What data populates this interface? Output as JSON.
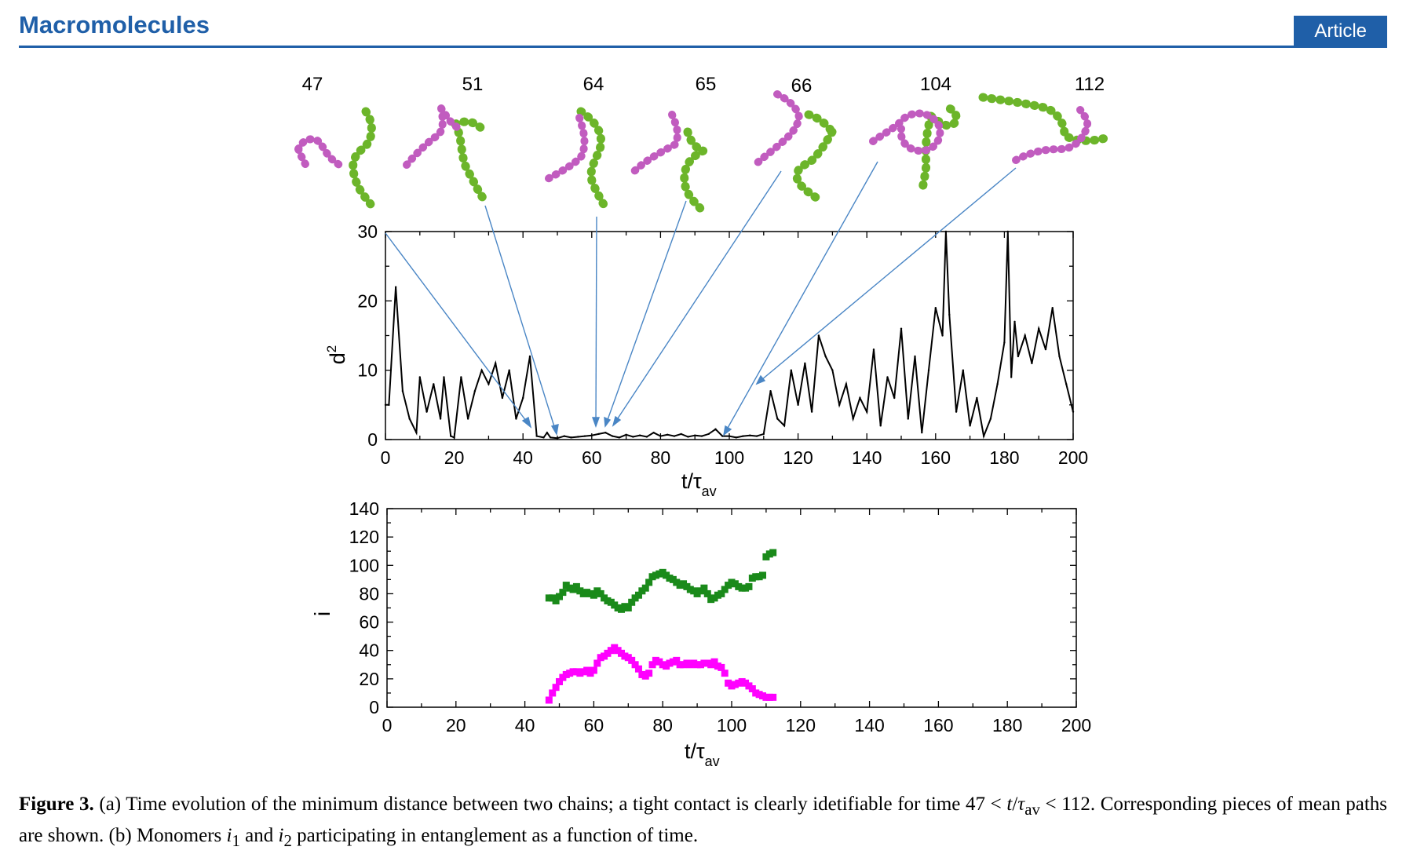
{
  "header": {
    "journal": "Macromolecules",
    "badge": "Article"
  },
  "snapshots": {
    "labels": [
      "47",
      "51",
      "64",
      "65",
      "66",
      "104",
      "112"
    ],
    "chain_colors": {
      "chain1": "#6cb52a",
      "chain2": "#c15cbf"
    }
  },
  "colors": {
    "accent": "#1f5fa8",
    "arrow": "#4a86c5",
    "green_series": "#1a8a1a",
    "magenta_series": "#ff00ff"
  },
  "chart_data": [
    {
      "type": "line",
      "panel": "a",
      "ylabel": "d",
      "ylabel_sup": "2",
      "xlabel": "t/τ",
      "xlabel_sub": "av",
      "xlim": [
        0,
        200
      ],
      "ylim": [
        0,
        30
      ],
      "xticks": [
        "0",
        "20",
        "40",
        "60",
        "80",
        "100",
        "120",
        "140",
        "160",
        "180",
        "200"
      ],
      "yticks": [
        "0",
        "10",
        "20",
        "30"
      ],
      "series": [
        {
          "name": "d2",
          "x": [
            0,
            1,
            3,
            5,
            7,
            9,
            10,
            12,
            14,
            16,
            17,
            19,
            20,
            22,
            24,
            26,
            28,
            30,
            32,
            34,
            36,
            38,
            40,
            42,
            44,
            46,
            47,
            48,
            50,
            52,
            54,
            56,
            58,
            60,
            62,
            64,
            66,
            68,
            70,
            72,
            74,
            76,
            78,
            80,
            82,
            84,
            86,
            88,
            90,
            92,
            94,
            96,
            98,
            100,
            102,
            104,
            106,
            108,
            110,
            112,
            114,
            116,
            118,
            120,
            122,
            124,
            126,
            128,
            130,
            132,
            134,
            136,
            138,
            140,
            142,
            144,
            146,
            148,
            150,
            152,
            154,
            156,
            158,
            160,
            162,
            163,
            164,
            166,
            168,
            170,
            172,
            174,
            176,
            178,
            180,
            181,
            182,
            183,
            184,
            186,
            188,
            190,
            192,
            194,
            196,
            198,
            200
          ],
          "y": [
            5,
            5,
            22,
            7,
            3,
            1,
            9,
            4,
            8,
            3,
            9,
            0.5,
            0.3,
            9,
            3,
            7,
            10,
            8,
            11,
            6,
            10,
            3,
            6,
            12,
            0.5,
            0.3,
            1,
            0.3,
            0.2,
            0.5,
            0.3,
            0.4,
            0.5,
            0.6,
            0.8,
            1,
            0.5,
            0.3,
            0.7,
            0.4,
            0.6,
            0.4,
            1,
            0.5,
            0.7,
            0.5,
            0.8,
            0.4,
            0.6,
            0.5,
            0.8,
            1.5,
            0.5,
            0.5,
            0.3,
            0.5,
            0.6,
            0.5,
            0.8,
            7,
            3,
            2,
            10,
            5,
            11,
            4,
            15,
            12,
            10,
            5,
            8,
            3,
            6,
            4,
            13,
            2,
            9,
            6,
            16,
            3,
            12,
            1,
            10,
            19,
            15,
            30,
            18,
            4,
            10,
            2,
            6,
            0.5,
            3,
            8,
            14,
            30,
            9,
            17,
            12,
            15,
            11,
            16,
            13,
            19,
            12,
            8,
            4
          ]
        }
      ]
    },
    {
      "type": "scatter",
      "panel": "b",
      "ylabel": "i",
      "xlabel": "t/τ",
      "xlabel_sub": "av",
      "xlim": [
        0,
        200
      ],
      "ylim": [
        0,
        140
      ],
      "xticks": [
        "0",
        "20",
        "40",
        "60",
        "80",
        "100",
        "120",
        "140",
        "160",
        "180",
        "200"
      ],
      "yticks": [
        "0",
        "20",
        "40",
        "60",
        "80",
        "100",
        "120",
        "140"
      ],
      "series": [
        {
          "name": "i1",
          "color": "#1a8a1a",
          "x": [
            47,
            48,
            49,
            50,
            51,
            52,
            53,
            54,
            55,
            56,
            57,
            58,
            59,
            60,
            61,
            62,
            63,
            64,
            65,
            66,
            67,
            68,
            69,
            70,
            71,
            72,
            73,
            74,
            75,
            76,
            77,
            78,
            79,
            80,
            81,
            82,
            83,
            84,
            85,
            86,
            87,
            88,
            89,
            90,
            91,
            92,
            93,
            94,
            95,
            96,
            97,
            98,
            99,
            100,
            101,
            102,
            103,
            104,
            105,
            106,
            107,
            108,
            109,
            110,
            111,
            112
          ],
          "y": [
            77,
            77,
            75,
            78,
            81,
            86,
            84,
            83,
            85,
            82,
            80,
            81,
            80,
            79,
            82,
            80,
            77,
            75,
            74,
            72,
            70,
            69,
            71,
            70,
            74,
            77,
            79,
            82,
            84,
            88,
            92,
            93,
            94,
            95,
            93,
            91,
            90,
            88,
            86,
            87,
            85,
            83,
            82,
            80,
            82,
            84,
            80,
            76,
            77,
            79,
            80,
            83,
            86,
            88,
            87,
            85,
            84,
            84,
            85,
            91,
            92,
            92,
            93,
            106,
            108,
            109
          ]
        },
        {
          "name": "i2",
          "color": "#ff00ff",
          "x": [
            47,
            48,
            49,
            50,
            51,
            52,
            53,
            54,
            55,
            56,
            57,
            58,
            59,
            60,
            61,
            62,
            63,
            64,
            65,
            66,
            67,
            68,
            69,
            70,
            71,
            72,
            73,
            74,
            75,
            76,
            77,
            78,
            79,
            80,
            81,
            82,
            83,
            84,
            85,
            86,
            87,
            88,
            89,
            90,
            91,
            92,
            93,
            94,
            95,
            96,
            97,
            98,
            99,
            100,
            101,
            102,
            103,
            104,
            105,
            106,
            107,
            108,
            109,
            110,
            111,
            112
          ],
          "y": [
            5,
            10,
            14,
            18,
            21,
            23,
            24,
            25,
            25,
            24,
            25,
            26,
            24,
            26,
            31,
            35,
            36,
            38,
            40,
            42,
            40,
            38,
            36,
            35,
            33,
            30,
            27,
            23,
            22,
            24,
            30,
            33,
            32,
            30,
            29,
            31,
            32,
            33,
            30,
            30,
            31,
            30,
            31,
            30,
            30,
            31,
            31,
            30,
            32,
            29,
            28,
            24,
            17,
            15,
            16,
            17,
            18,
            17,
            15,
            13,
            10,
            9,
            8,
            7,
            7,
            7
          ]
        }
      ]
    }
  ],
  "caption": {
    "label": "Figure 3.",
    "text_1": " (a) Time evolution of the minimum distance between two chains; a tight contact is clearly idetifiable for time 47 < ",
    "t": "t",
    "slash": "/",
    "tau": "τ",
    "av": "av",
    "text_2": " < 112. Corresponding pieces of mean paths are shown. (b) Monomers ",
    "i": "i",
    "sub1": "1",
    "and": " and ",
    "sub2": "2",
    "text_3": " participating in entanglement as a function of time."
  }
}
